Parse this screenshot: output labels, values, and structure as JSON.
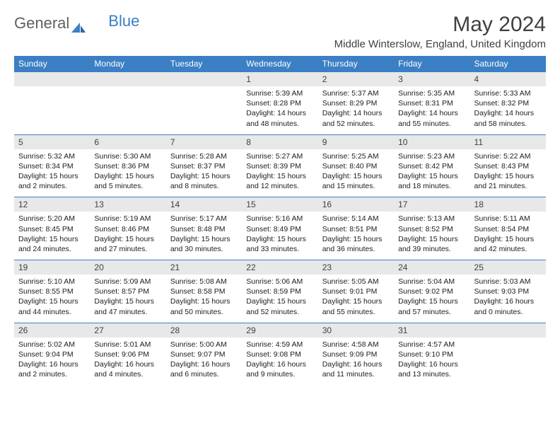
{
  "logo": {
    "text1": "General",
    "text2": "Blue"
  },
  "title": "May 2024",
  "location": "Middle Winterslow, England, United Kingdom",
  "colors": {
    "header_bg": "#3b7fc4",
    "header_text": "#ffffff",
    "daynum_bg": "#e8e8e8",
    "border": "#3b7fc4",
    "body_text": "#202020",
    "title_text": "#404040"
  },
  "day_headers": [
    "Sunday",
    "Monday",
    "Tuesday",
    "Wednesday",
    "Thursday",
    "Friday",
    "Saturday"
  ],
  "weeks": [
    [
      null,
      null,
      null,
      {
        "n": "1",
        "sr": "5:39 AM",
        "ss": "8:28 PM",
        "dl": "14 hours and 48 minutes."
      },
      {
        "n": "2",
        "sr": "5:37 AM",
        "ss": "8:29 PM",
        "dl": "14 hours and 52 minutes."
      },
      {
        "n": "3",
        "sr": "5:35 AM",
        "ss": "8:31 PM",
        "dl": "14 hours and 55 minutes."
      },
      {
        "n": "4",
        "sr": "5:33 AM",
        "ss": "8:32 PM",
        "dl": "14 hours and 58 minutes."
      }
    ],
    [
      {
        "n": "5",
        "sr": "5:32 AM",
        "ss": "8:34 PM",
        "dl": "15 hours and 2 minutes."
      },
      {
        "n": "6",
        "sr": "5:30 AM",
        "ss": "8:36 PM",
        "dl": "15 hours and 5 minutes."
      },
      {
        "n": "7",
        "sr": "5:28 AM",
        "ss": "8:37 PM",
        "dl": "15 hours and 8 minutes."
      },
      {
        "n": "8",
        "sr": "5:27 AM",
        "ss": "8:39 PM",
        "dl": "15 hours and 12 minutes."
      },
      {
        "n": "9",
        "sr": "5:25 AM",
        "ss": "8:40 PM",
        "dl": "15 hours and 15 minutes."
      },
      {
        "n": "10",
        "sr": "5:23 AM",
        "ss": "8:42 PM",
        "dl": "15 hours and 18 minutes."
      },
      {
        "n": "11",
        "sr": "5:22 AM",
        "ss": "8:43 PM",
        "dl": "15 hours and 21 minutes."
      }
    ],
    [
      {
        "n": "12",
        "sr": "5:20 AM",
        "ss": "8:45 PM",
        "dl": "15 hours and 24 minutes."
      },
      {
        "n": "13",
        "sr": "5:19 AM",
        "ss": "8:46 PM",
        "dl": "15 hours and 27 minutes."
      },
      {
        "n": "14",
        "sr": "5:17 AM",
        "ss": "8:48 PM",
        "dl": "15 hours and 30 minutes."
      },
      {
        "n": "15",
        "sr": "5:16 AM",
        "ss": "8:49 PM",
        "dl": "15 hours and 33 minutes."
      },
      {
        "n": "16",
        "sr": "5:14 AM",
        "ss": "8:51 PM",
        "dl": "15 hours and 36 minutes."
      },
      {
        "n": "17",
        "sr": "5:13 AM",
        "ss": "8:52 PM",
        "dl": "15 hours and 39 minutes."
      },
      {
        "n": "18",
        "sr": "5:11 AM",
        "ss": "8:54 PM",
        "dl": "15 hours and 42 minutes."
      }
    ],
    [
      {
        "n": "19",
        "sr": "5:10 AM",
        "ss": "8:55 PM",
        "dl": "15 hours and 44 minutes."
      },
      {
        "n": "20",
        "sr": "5:09 AM",
        "ss": "8:57 PM",
        "dl": "15 hours and 47 minutes."
      },
      {
        "n": "21",
        "sr": "5:08 AM",
        "ss": "8:58 PM",
        "dl": "15 hours and 50 minutes."
      },
      {
        "n": "22",
        "sr": "5:06 AM",
        "ss": "8:59 PM",
        "dl": "15 hours and 52 minutes."
      },
      {
        "n": "23",
        "sr": "5:05 AM",
        "ss": "9:01 PM",
        "dl": "15 hours and 55 minutes."
      },
      {
        "n": "24",
        "sr": "5:04 AM",
        "ss": "9:02 PM",
        "dl": "15 hours and 57 minutes."
      },
      {
        "n": "25",
        "sr": "5:03 AM",
        "ss": "9:03 PM",
        "dl": "16 hours and 0 minutes."
      }
    ],
    [
      {
        "n": "26",
        "sr": "5:02 AM",
        "ss": "9:04 PM",
        "dl": "16 hours and 2 minutes."
      },
      {
        "n": "27",
        "sr": "5:01 AM",
        "ss": "9:06 PM",
        "dl": "16 hours and 4 minutes."
      },
      {
        "n": "28",
        "sr": "5:00 AM",
        "ss": "9:07 PM",
        "dl": "16 hours and 6 minutes."
      },
      {
        "n": "29",
        "sr": "4:59 AM",
        "ss": "9:08 PM",
        "dl": "16 hours and 9 minutes."
      },
      {
        "n": "30",
        "sr": "4:58 AM",
        "ss": "9:09 PM",
        "dl": "16 hours and 11 minutes."
      },
      {
        "n": "31",
        "sr": "4:57 AM",
        "ss": "9:10 PM",
        "dl": "16 hours and 13 minutes."
      },
      null
    ]
  ],
  "labels": {
    "sunrise": "Sunrise:",
    "sunset": "Sunset:",
    "daylight": "Daylight:"
  }
}
